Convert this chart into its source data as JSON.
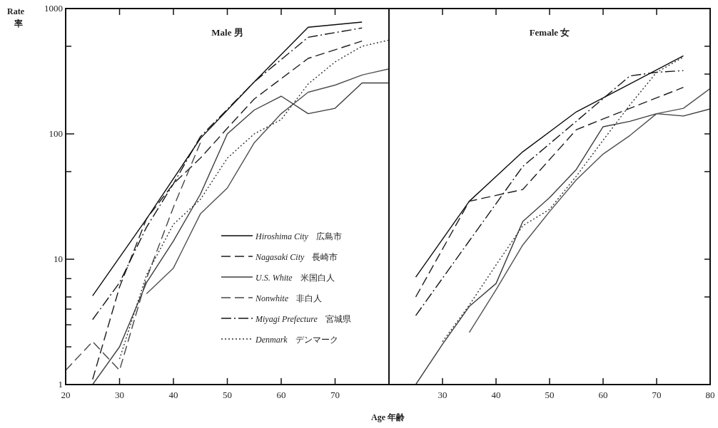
{
  "chart_data": [
    {
      "type": "line",
      "title": "Male 男",
      "xlabel": "Age 年齢",
      "ylabel": "Rate 率",
      "log": true,
      "legend": "bottom right",
      "xlim": [
        20,
        80
      ],
      "xticks": [
        20,
        30,
        40,
        50,
        60,
        70
      ],
      "ylim": [
        1,
        1000
      ],
      "yticks": [
        1,
        {
          "value": 2,
          "label": null
        },
        {
          "value": 3,
          "label": null
        },
        {
          "value": 4,
          "label": null
        },
        {
          "value": 5,
          "label": null
        },
        {
          "value": 7,
          "label": null
        },
        10,
        {
          "value": 50,
          "label": null
        },
        100,
        {
          "value": 500,
          "label": null
        },
        1000
      ],
      "series": [
        {
          "name": "Hiroshima City 広島市",
          "color": "#0a0a0a",
          "line_style": "solid",
          "x": [
            25,
            35,
            45,
            55,
            65,
            75
          ],
          "values": [
            5.1,
            21,
            92,
            260,
            710,
            780
          ]
        },
        {
          "name": "Nagasaki City 長崎市",
          "color": "#1e1e1e",
          "line_style": "dashed",
          "x": [
            25,
            30,
            35,
            40,
            45,
            50,
            55,
            65,
            75
          ],
          "values": [
            1.1,
            6,
            21,
            40,
            64,
            111,
            190,
            400,
            550
          ]
        },
        {
          "name": "U.S. White 米国白人",
          "color": "#3c3c3c",
          "line_style": "solid",
          "x": [
            25,
            30,
            35,
            40,
            45,
            50,
            55,
            60,
            65,
            70,
            75,
            80
          ],
          "values": [
            1.0,
            2.0,
            6.5,
            14,
            33,
            100,
            155,
            200,
            145,
            160,
            255,
            255
          ]
        },
        {
          "color": "#505050",
          "line_style": "solid",
          "x": [
            35,
            40,
            45,
            50,
            55,
            60,
            65,
            70,
            75,
            80
          ],
          "values": [
            5.3,
            8.5,
            23,
            37,
            85,
            145,
            215,
            245,
            295,
            330
          ]
        },
        {
          "name": "Nonwhite 非白人",
          "color": "#464646",
          "line_style": "dashed",
          "x": [
            20,
            25,
            30,
            35,
            40,
            45
          ],
          "values": [
            1.3,
            2.2,
            1.3,
            7,
            26,
            85
          ]
        },
        {
          "name": "Miyagi Prefecture 宮城県",
          "color": "#141414",
          "line_style": "dashdot",
          "x": [
            25,
            30,
            35,
            40,
            45,
            55,
            65,
            75
          ],
          "values": [
            3.3,
            6.5,
            18,
            40,
            95,
            260,
            590,
            700
          ]
        },
        {
          "name": "Denmark デンマーク",
          "color": "#323232",
          "line_style": "dotted",
          "x": [
            30,
            35,
            40,
            45,
            50,
            55,
            60,
            65,
            70,
            75,
            80
          ],
          "values": [
            1.6,
            7.5,
            19,
            30,
            64,
            100,
            130,
            250,
            375,
            500,
            560
          ]
        }
      ]
    },
    {
      "type": "line",
      "title": "Female 女",
      "log": true,
      "tick_labels": "x",
      "xlim": [
        20,
        80
      ],
      "xticks": [
        30,
        40,
        50,
        60,
        70,
        80
      ],
      "ylim": [
        1,
        1000
      ],
      "yticks": [
        {
          "value": 5,
          "label": null
        },
        {
          "value": 10,
          "label": null
        },
        {
          "value": 50,
          "label": null
        },
        {
          "value": 100,
          "label": null
        },
        {
          "value": 300,
          "label": null
        },
        {
          "value": 500,
          "label": null
        }
      ],
      "series": [
        {
          "color": "#0a0a0a",
          "line_style": "solid",
          "x": [
            25,
            35,
            45,
            55,
            65,
            75
          ],
          "values": [
            7.2,
            29,
            72,
            150,
            250,
            420
          ]
        },
        {
          "color": "#1e1e1e",
          "line_style": "dashed",
          "x": [
            25,
            35,
            45,
            55,
            65,
            75
          ],
          "values": [
            5.0,
            29,
            36,
            108,
            160,
            235
          ]
        },
        {
          "color": "#3c3c3c",
          "line_style": "solid",
          "x": [
            25,
            30,
            35,
            40,
            45,
            50,
            55,
            60,
            65,
            70,
            75,
            80
          ],
          "values": [
            1.0,
            2.1,
            4.2,
            6.4,
            20,
            31,
            52,
            114,
            126,
            145,
            139,
            158
          ]
        },
        {
          "color": "#505050",
          "line_style": "solid",
          "x": [
            35,
            40,
            45,
            50,
            55,
            60,
            65,
            70,
            75,
            80
          ],
          "values": [
            2.6,
            5.7,
            13,
            24,
            43,
            69,
            97,
            145,
            160,
            230
          ]
        },
        {
          "color": "#141414",
          "line_style": "dashdot",
          "x": [
            25,
            35,
            45,
            55,
            65,
            70,
            75
          ],
          "values": [
            3.55,
            14,
            55,
            126,
            290,
            310,
            320
          ]
        },
        {
          "color": "#323232",
          "line_style": "dotted",
          "x": [
            30,
            35,
            40,
            45,
            50,
            55,
            60,
            65,
            70,
            75
          ],
          "values": [
            2.2,
            4.3,
            9,
            18.5,
            25,
            46,
            89,
            170,
            310,
            410
          ]
        }
      ]
    }
  ]
}
